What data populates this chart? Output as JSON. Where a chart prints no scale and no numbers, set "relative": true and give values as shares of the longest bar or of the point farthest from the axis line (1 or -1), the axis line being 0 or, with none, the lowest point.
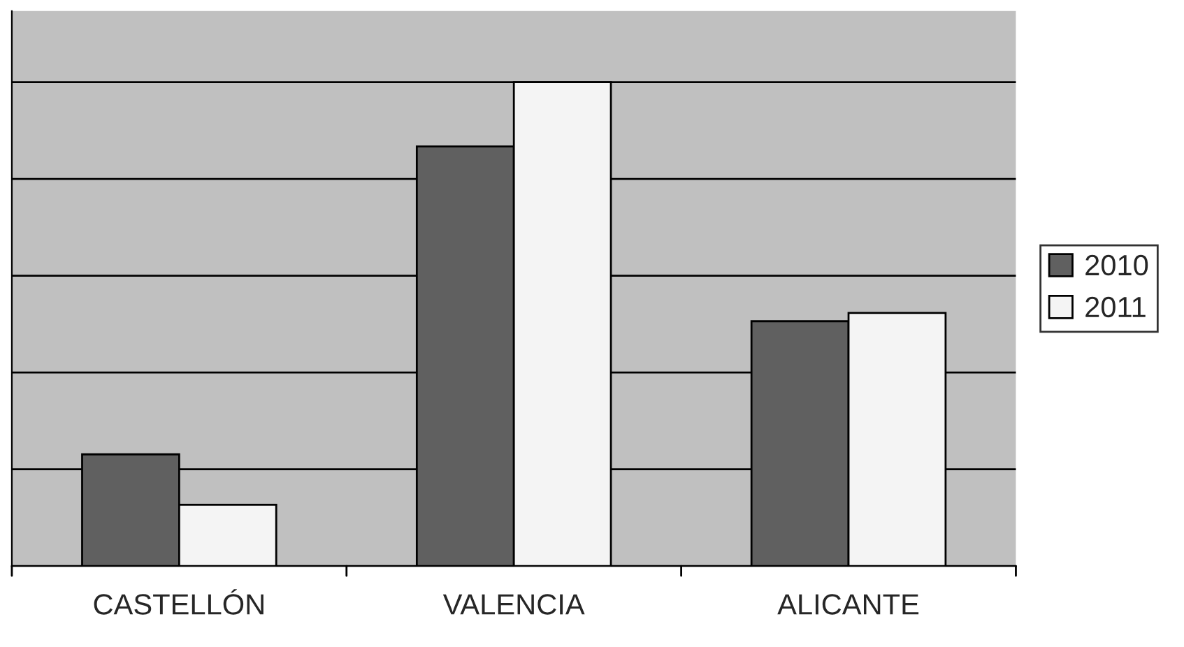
{
  "chart_data": {
    "type": "bar",
    "relative": true,
    "categories": [
      "CASTELLÓN",
      "VALENCIA",
      "ALICANTE"
    ],
    "series": [
      {
        "name": "2010",
        "color": "#606060",
        "values": [
          0.231,
          0.867,
          0.506
        ]
      },
      {
        "name": "2011",
        "color": "#f4f4f4",
        "values": [
          0.127,
          1.0,
          0.523
        ]
      }
    ],
    "grid": "y",
    "legend": "right"
  }
}
